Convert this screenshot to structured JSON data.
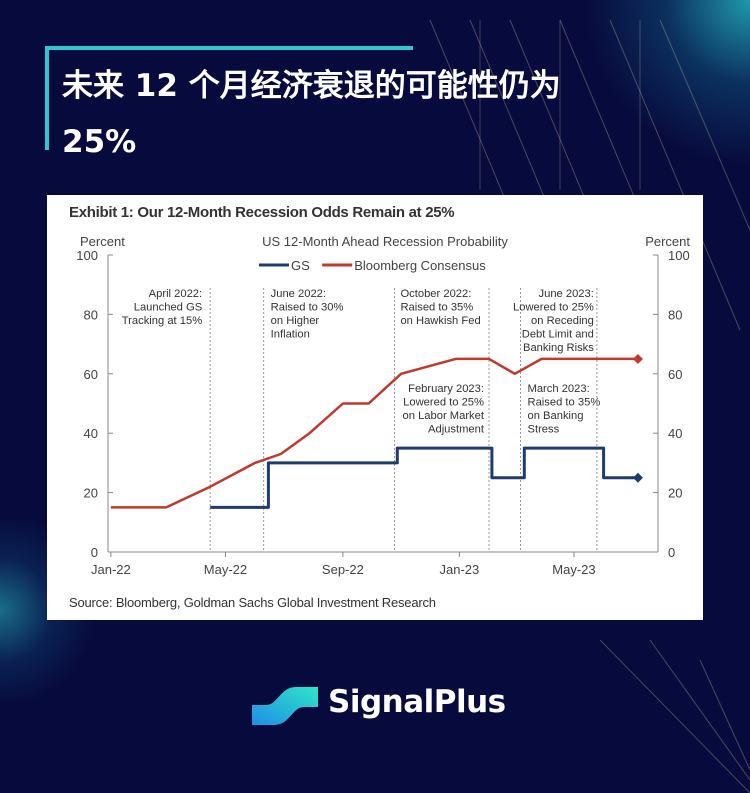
{
  "header": {
    "title_line1": "未来 12 个月经济衰退的可能性仍为",
    "title_line2": "25%"
  },
  "exhibit_title": "Exhibit 1: Our 12-Month Recession Odds Remain at 25%",
  "source": "Source: Bloomberg, Goldman Sachs Global Investment Research",
  "brand": {
    "name": "SignalPlus",
    "colors": [
      "#2fe0c8",
      "#1f8ee8"
    ]
  },
  "colors": {
    "background": "#070a3c",
    "accent": "#2fc7cf",
    "gs": "#1f3c6e",
    "bloomberg": "#c0392b"
  },
  "chart_data": {
    "type": "line",
    "title": "US 12-Month  Ahead  Recession Probability",
    "ylabel_left": "Percent",
    "ylabel_right": "Percent",
    "ylim": [
      0,
      100
    ],
    "yticks": [
      0,
      20,
      40,
      60,
      80,
      100
    ],
    "xticks": [
      {
        "date": "2022-01-01",
        "label": "Jan-22"
      },
      {
        "date": "2022-05-01",
        "label": "May-22"
      },
      {
        "date": "2022-09-01",
        "label": "Sep-22"
      },
      {
        "date": "2023-01-01",
        "label": "Jan-23"
      },
      {
        "date": "2023-05-01",
        "label": "May-23"
      }
    ],
    "xlim": [
      "2021-12-29",
      "2023-07-28"
    ],
    "grid": false,
    "legend": "top-center",
    "series": [
      {
        "name": "GS",
        "color": "#1f3c6e",
        "step": true,
        "end_marker": "diamond",
        "points": [
          [
            "2022-04-15",
            15
          ],
          [
            "2022-06-15",
            15
          ],
          [
            "2022-06-15",
            30
          ],
          [
            "2022-10-28",
            30
          ],
          [
            "2022-10-28",
            35
          ],
          [
            "2023-02-04",
            35
          ],
          [
            "2023-02-04",
            25
          ],
          [
            "2023-03-10",
            25
          ],
          [
            "2023-03-10",
            35
          ],
          [
            "2023-06-01",
            35
          ],
          [
            "2023-06-01",
            25
          ],
          [
            "2023-07-07",
            25
          ]
        ]
      },
      {
        "name": "Bloomberg Consensus",
        "color": "#c0392b",
        "step": false,
        "end_marker": "diamond",
        "points": [
          [
            "2022-01-01",
            15
          ],
          [
            "2022-02-28",
            15
          ],
          [
            "2022-04-15",
            22
          ],
          [
            "2022-06-01",
            30
          ],
          [
            "2022-06-28",
            33
          ],
          [
            "2022-07-28",
            40
          ],
          [
            "2022-09-01",
            50
          ],
          [
            "2022-09-28",
            50
          ],
          [
            "2022-11-01",
            60
          ],
          [
            "2022-12-28",
            65
          ],
          [
            "2023-02-01",
            65
          ],
          [
            "2023-02-28",
            60
          ],
          [
            "2023-03-28",
            65
          ],
          [
            "2023-07-07",
            65
          ]
        ]
      }
    ],
    "annotations": [
      {
        "date": "2022-04-15",
        "lines": [
          "April 2022:",
          "Launched GS",
          "Tracking at 15%"
        ]
      },
      {
        "date": "2022-06-10",
        "lines": [
          "June 2022:",
          "Raised to 30%",
          "on Higher",
          "Inflation"
        ]
      },
      {
        "date": "2022-10-25",
        "lines": [
          "October 2022:",
          "Raised to 35%",
          "on Hawkish Fed"
        ]
      },
      {
        "date": "2023-02-01",
        "lines": [
          "February 2023:",
          "Lowered to 25%",
          "on Labor Market",
          "Adjustment"
        ]
      },
      {
        "date": "2023-03-06",
        "lines": [
          "March 2023:",
          "Raised to 35%",
          "on Banking",
          "Stress"
        ]
      },
      {
        "date": "2023-05-25",
        "lines": [
          "June 2023:",
          "Lowered to 25%",
          "on Receding",
          "Debt Limit  and",
          "Banking Risks"
        ]
      }
    ]
  }
}
